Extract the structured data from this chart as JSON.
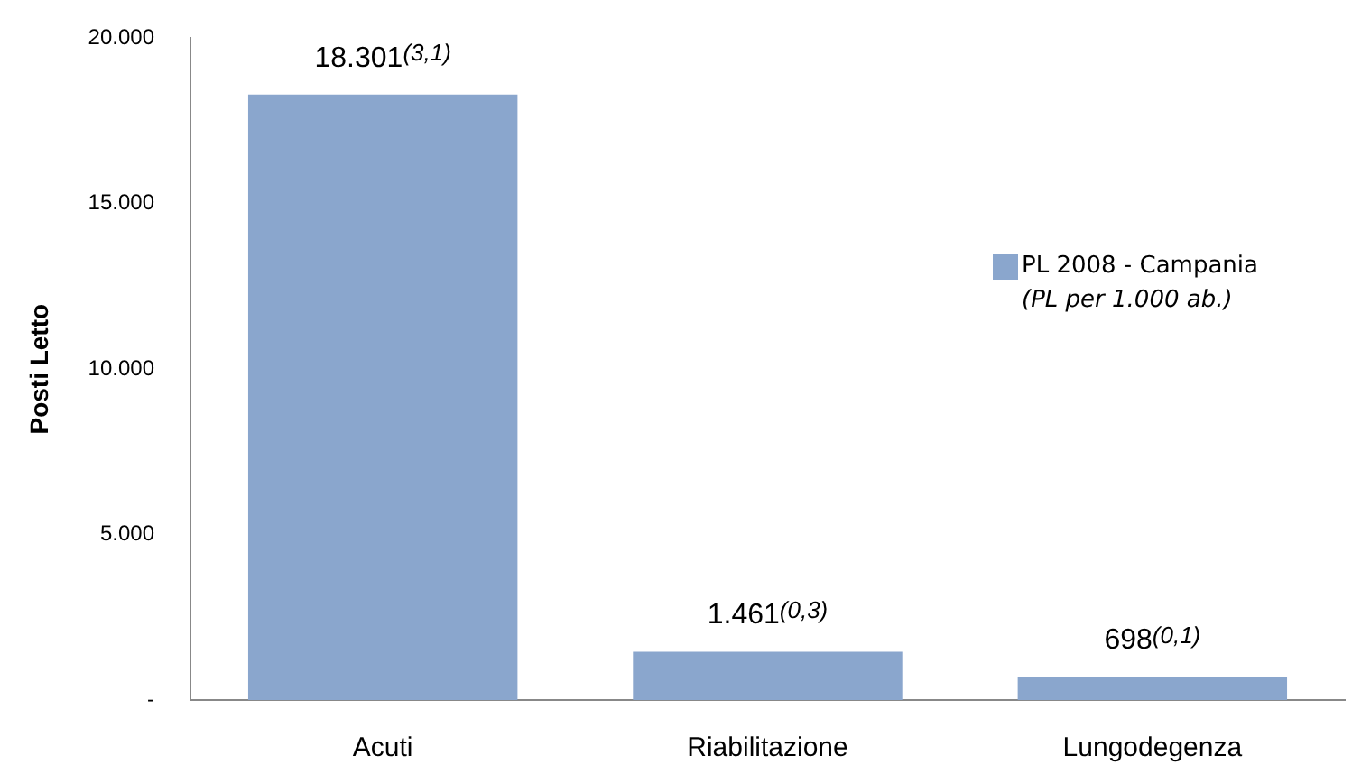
{
  "chart_data": {
    "type": "bar",
    "ylabel": "Posti Letto",
    "categories": [
      "Acuti",
      "Riabilitazione",
      "Lungodegenza"
    ],
    "series": [
      {
        "name": "PL 2008 - Campania",
        "color": "#8aa6cd",
        "values": [
          18301,
          1461,
          698
        ],
        "value_labels": [
          "18.301(3,1)",
          "1.461(0,3)",
          "698(0,1)"
        ]
      }
    ],
    "ylim": [
      0,
      20000
    ],
    "yticks": [
      {
        "value": 0,
        "label": "-"
      },
      {
        "value": 5000,
        "label": "5.000"
      },
      {
        "value": 10000,
        "label": "10.000"
      },
      {
        "value": 15000,
        "label": "15.000"
      },
      {
        "value": 20000,
        "label": "20.000"
      }
    ],
    "grid": false,
    "legend": "right",
    "annotations": [
      "(PL per 1.000 ab.)"
    ]
  }
}
